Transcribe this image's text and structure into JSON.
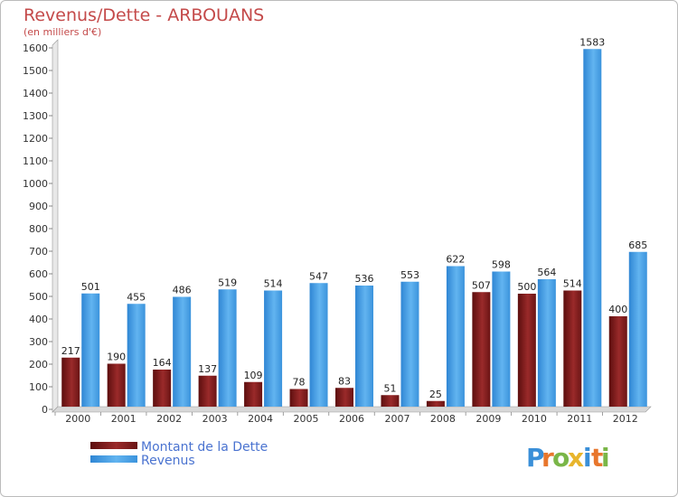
{
  "chart_data": {
    "type": "bar",
    "title": "Revenus/Dette - ARBOUANS",
    "subtitle": "(en milliers d'€)",
    "categories": [
      "2000",
      "2001",
      "2002",
      "2003",
      "2004",
      "2005",
      "2006",
      "2007",
      "2008",
      "2009",
      "2010",
      "2011",
      "2012"
    ],
    "series": [
      {
        "name": "Montant de la Dette",
        "color": "#7a1a1a",
        "values": [
          217,
          190,
          164,
          137,
          109,
          78,
          83,
          51,
          25,
          507,
          500,
          514,
          400
        ]
      },
      {
        "name": "Revenus",
        "color": "#4aa3e6",
        "values": [
          501,
          455,
          486,
          519,
          514,
          547,
          536,
          553,
          622,
          598,
          564,
          1583,
          685
        ]
      }
    ],
    "ylim": [
      0,
      1600
    ],
    "yticks": [
      0,
      100,
      200,
      300,
      400,
      500,
      600,
      700,
      800,
      900,
      1000,
      1100,
      1200,
      1300,
      1400,
      1500,
      1600
    ],
    "grid": false,
    "legend": "bottom-left"
  },
  "brand": {
    "letters": [
      "P",
      "r",
      "o",
      "x",
      "i",
      "t",
      "i"
    ],
    "colors": [
      "#3a8fd8",
      "#e8762c",
      "#7ab648",
      "#e8b52c",
      "#3a8fd8",
      "#e8762c",
      "#7ab648"
    ]
  }
}
